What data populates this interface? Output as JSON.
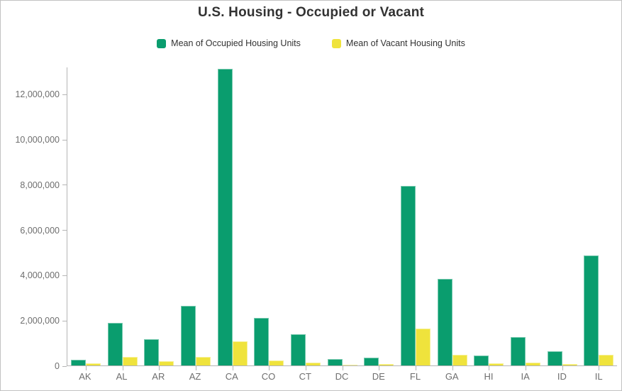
{
  "title": "U.S. Housing - Occupied or Vacant",
  "colors": {
    "occupied": "#0a9d6e",
    "vacant": "#efe33c",
    "axis_line": "#b5b5b5",
    "tick_text": "#6e6e6e",
    "title_text": "#323232",
    "frame_border": "#c2c2c2"
  },
  "legend": [
    {
      "label": "Mean of Occupied Housing Units",
      "color": "#0a9d6e",
      "series_key": "occupied"
    },
    {
      "label": "Mean of Vacant Housing Units",
      "color": "#efe33c",
      "series_key": "vacant"
    }
  ],
  "chart_data": {
    "type": "bar",
    "title": "U.S. Housing - Occupied or Vacant",
    "categories": [
      "AK",
      "AL",
      "AR",
      "AZ",
      "CA",
      "CO",
      "CT",
      "DC",
      "DE",
      "FL",
      "GA",
      "HI",
      "IA",
      "ID",
      "IL"
    ],
    "series": [
      {
        "name": "Mean of Occupied Housing Units",
        "color": "#0a9d6e",
        "values": [
          250000,
          1880000,
          1160000,
          2640000,
          13120000,
          2100000,
          1370000,
          270000,
          350000,
          7930000,
          3810000,
          450000,
          1260000,
          630000,
          4870000
        ]
      },
      {
        "name": "Mean of Vacant Housing Units",
        "color": "#efe33c",
        "values": [
          80000,
          380000,
          200000,
          390000,
          1070000,
          220000,
          140000,
          40000,
          70000,
          1620000,
          480000,
          80000,
          130000,
          70000,
          480000
        ]
      }
    ],
    "xlabel": "",
    "ylabel": "",
    "ylim": [
      0,
      13200000
    ],
    "yticks": [
      0,
      2000000,
      4000000,
      6000000,
      8000000,
      10000000,
      12000000
    ],
    "grid": false,
    "legend_position": "top"
  }
}
